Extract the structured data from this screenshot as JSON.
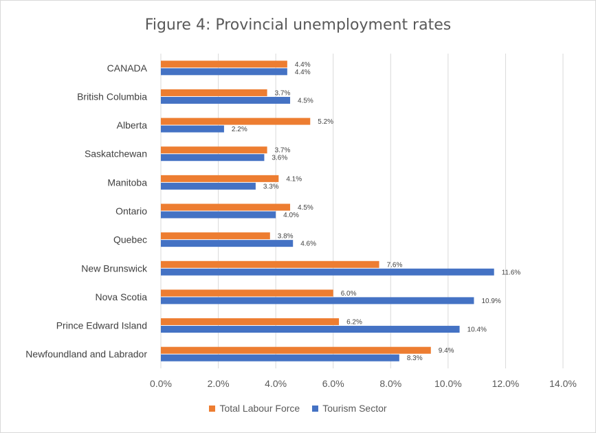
{
  "chart_data": {
    "type": "bar",
    "orientation": "horizontal",
    "title": "Figure 4: Provincial unemployment rates",
    "categories": [
      "CANADA",
      "British Columbia",
      "Alberta",
      "Saskatchewan",
      "Manitoba",
      "Ontario",
      "Quebec",
      "New Brunswick",
      "Nova Scotia",
      "Prince Edward Island",
      "Newfoundland and Labrador"
    ],
    "series": [
      {
        "name": "Total Labour Force",
        "color": "#ED7D31",
        "values": [
          4.4,
          3.7,
          5.2,
          3.7,
          4.1,
          4.5,
          3.8,
          7.6,
          6.0,
          6.2,
          9.4
        ],
        "labels": [
          "4.4%",
          "3.7%",
          "5.2%",
          "3.7%",
          "4.1%",
          "4.5%",
          "3.8%",
          "7.6%",
          "6.0%",
          "6.2%",
          "9.4%"
        ]
      },
      {
        "name": "Tourism Sector",
        "color": "#4472C4",
        "values": [
          4.4,
          4.5,
          2.2,
          3.6,
          3.3,
          4.0,
          4.6,
          11.6,
          10.9,
          10.4,
          8.3
        ],
        "labels": [
          "4.4%",
          "4.5%",
          "2.2%",
          "3.6%",
          "3.3%",
          "4.0%",
          "4.6%",
          "11.6%",
          "10.9%",
          "10.4%",
          "8.3%"
        ]
      }
    ],
    "xlim": [
      0,
      14
    ],
    "xticks": [
      0,
      2,
      4,
      6,
      8,
      10,
      12,
      14
    ],
    "xtick_labels": [
      "0.0%",
      "2.0%",
      "4.0%",
      "6.0%",
      "8.0%",
      "10.0%",
      "12.0%",
      "14.0%"
    ],
    "grid": "vertical",
    "legend_position": "bottom",
    "gridline_color": "#d9d9d9"
  }
}
